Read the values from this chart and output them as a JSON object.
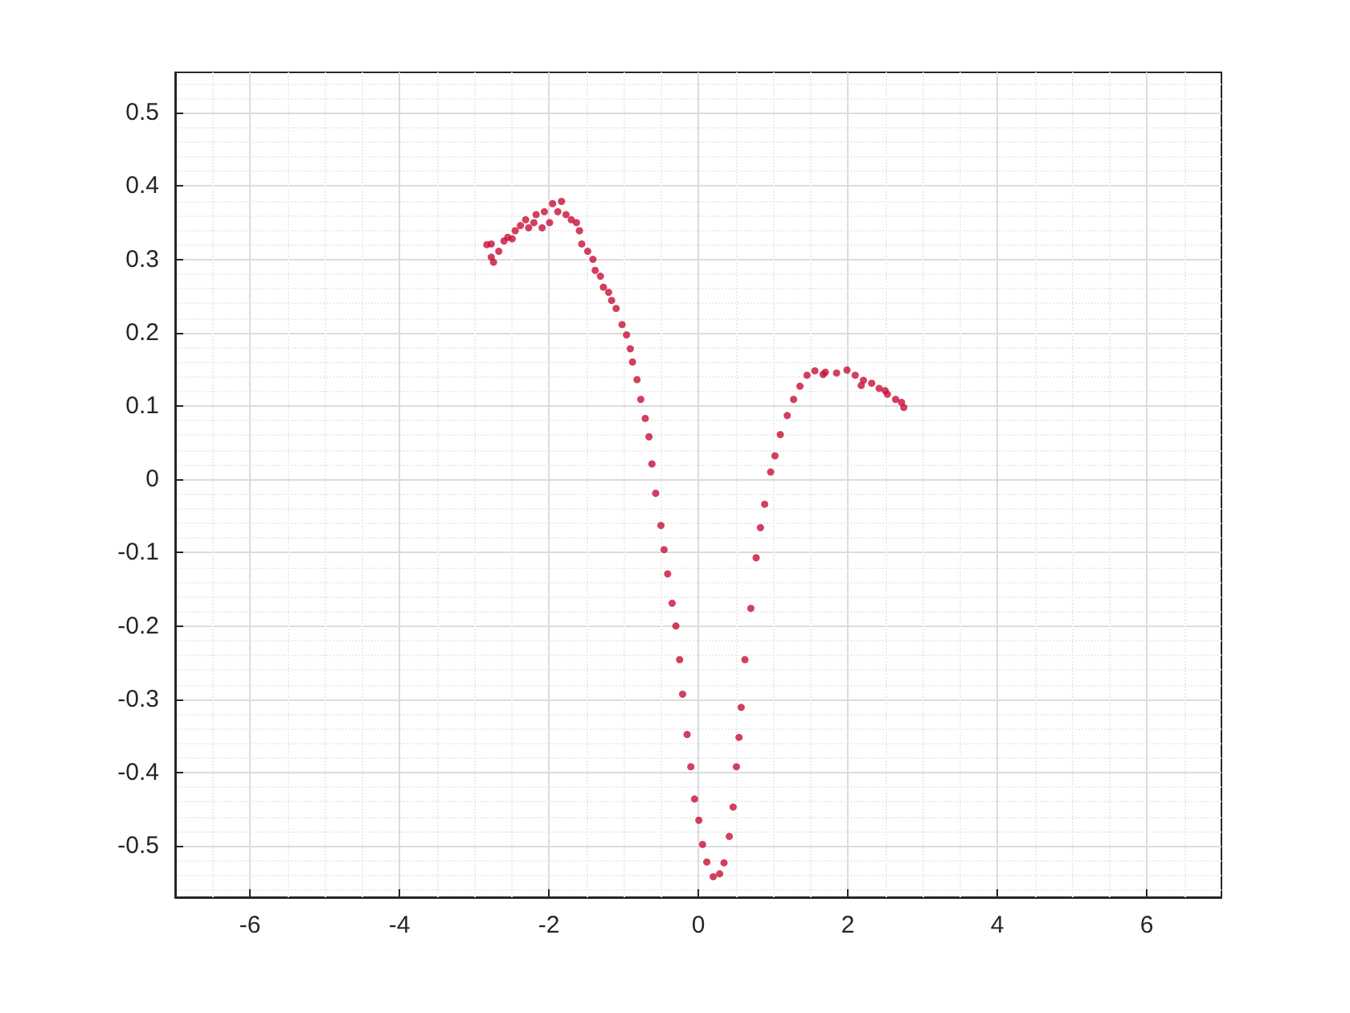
{
  "chart_data": {
    "type": "scatter",
    "xlim": [
      -7,
      7
    ],
    "xticks": [
      -6,
      -4,
      -2,
      0,
      2,
      4,
      6
    ],
    "ylim": [
      -0.57,
      0.555
    ],
    "yticks": [
      -0.5,
      -0.4,
      -0.3,
      -0.2,
      -0.1,
      0,
      0.1,
      0.2,
      0.3,
      0.4,
      0.5
    ],
    "grid": true,
    "marker": "circle",
    "series": [
      {
        "color": "#c80f37",
        "x": [
          -2.83,
          -2.77,
          -2.77,
          -2.74,
          -2.67,
          -2.6,
          -2.55,
          -2.49,
          -2.45,
          -2.38,
          -2.31,
          -2.27,
          -2.2,
          -2.17,
          -2.09,
          -2.06,
          -1.99,
          -1.95,
          -1.88,
          -1.83,
          -1.77,
          -1.7,
          -1.63,
          -1.59,
          -1.56,
          -1.48,
          -1.41,
          -1.38,
          -1.31,
          -1.27,
          -1.2,
          -1.16,
          -1.1,
          -1.02,
          -0.96,
          -0.91,
          -0.88,
          -0.82,
          -0.77,
          -0.71,
          -0.66,
          -0.62,
          -0.57,
          -0.5,
          -0.458,
          -0.41,
          -0.35,
          -0.3,
          -0.25,
          -0.21,
          -0.15,
          -0.1,
          -0.05,
          0.007,
          0.057,
          0.114,
          0.2,
          0.286,
          0.344,
          0.415,
          0.466,
          0.51,
          0.545,
          0.574,
          0.624,
          0.703,
          0.774,
          0.832,
          0.888,
          0.968,
          1.026,
          1.097,
          1.19,
          1.275,
          1.36,
          1.455,
          1.56,
          1.67,
          1.7,
          1.85,
          1.99,
          2.1,
          2.18,
          2.21,
          2.32,
          2.42,
          2.5,
          2.53,
          2.64,
          2.72,
          2.75
        ],
        "values": [
          0.32,
          0.321,
          0.303,
          0.296,
          0.311,
          0.325,
          0.33,
          0.328,
          0.339,
          0.346,
          0.354,
          0.343,
          0.35,
          0.361,
          0.343,
          0.365,
          0.35,
          0.376,
          0.365,
          0.379,
          0.361,
          0.354,
          0.35,
          0.339,
          0.321,
          0.311,
          0.3,
          0.285,
          0.277,
          0.262,
          0.255,
          0.244,
          0.233,
          0.211,
          0.197,
          0.178,
          0.16,
          0.136,
          0.109,
          0.083,
          0.058,
          0.021,
          -0.019,
          -0.063,
          -0.096,
          -0.129,
          -0.169,
          -0.2,
          -0.246,
          -0.293,
          -0.348,
          -0.392,
          -0.436,
          -0.465,
          -0.498,
          -0.522,
          -0.542,
          -0.538,
          -0.523,
          -0.487,
          -0.447,
          -0.392,
          -0.352,
          -0.311,
          -0.246,
          -0.176,
          -0.107,
          -0.066,
          -0.034,
          0.01,
          0.032,
          0.061,
          0.087,
          0.109,
          0.127,
          0.142,
          0.148,
          0.143,
          0.146,
          0.145,
          0.149,
          0.142,
          0.128,
          0.135,
          0.131,
          0.124,
          0.121,
          0.116,
          0.109,
          0.105,
          0.098
        ]
      }
    ]
  }
}
